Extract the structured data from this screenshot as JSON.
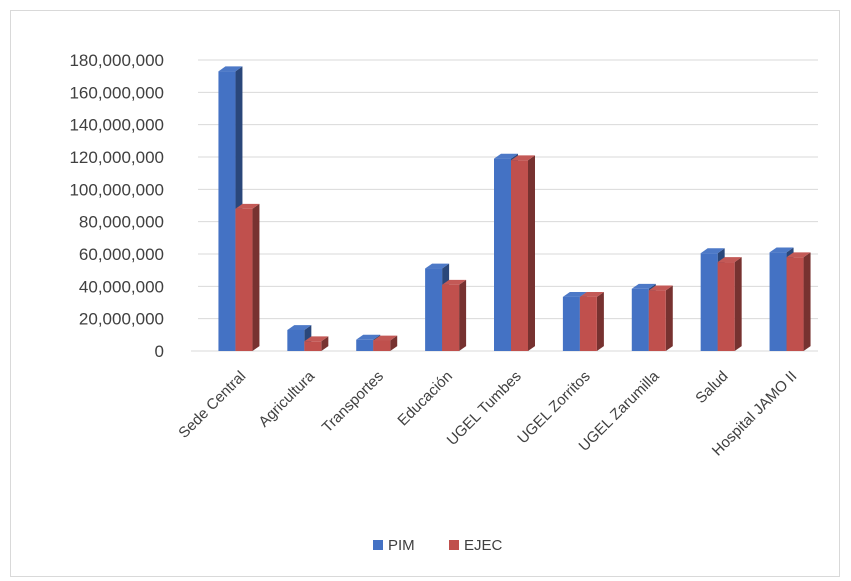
{
  "chart_data": {
    "type": "bar",
    "title": "",
    "xlabel": "",
    "ylabel": "",
    "ylim": [
      0,
      180000000
    ],
    "yticks": [
      0,
      20000000,
      40000000,
      60000000,
      80000000,
      100000000,
      120000000,
      140000000,
      160000000,
      180000000
    ],
    "ytick_labels": [
      "0",
      "20,000,000",
      "40,000,000",
      "60,000,000",
      "80,000,000",
      "100,000,000",
      "120,000,000",
      "140,000,000",
      "160,000,000",
      "180,000,000"
    ],
    "grid": true,
    "legend_position": "bottom",
    "categories": [
      "Sede Central",
      "Agricultura",
      "Transportes",
      "Educación",
      "UGEL Tumbes",
      "UGEL Zorritos",
      "UGEL Zarumilla",
      "Salud",
      "Hospital JAMO II"
    ],
    "series": [
      {
        "name": "PIM",
        "color": "#4472C4",
        "values": [
          173000000,
          13000000,
          7000000,
          51000000,
          119000000,
          33500000,
          38500000,
          60500000,
          61000000
        ]
      },
      {
        "name": "EJEC",
        "color": "#C0504D",
        "values": [
          88000000,
          6000000,
          6500000,
          41000000,
          118000000,
          33500000,
          37500000,
          55000000,
          58000000
        ]
      }
    ]
  }
}
